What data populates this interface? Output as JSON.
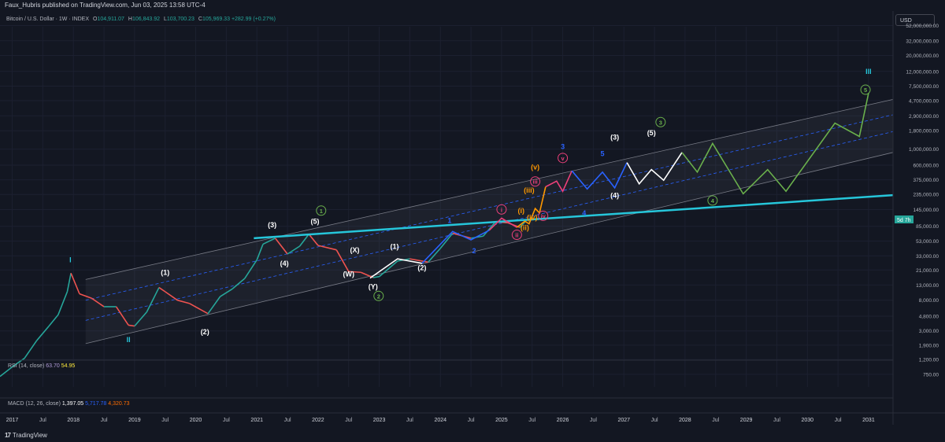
{
  "header": {
    "published": "Faux_Hubris published on TradingView.com, Jun 03, 2025 13:58 UTC-4",
    "symbol": "Bitcoin / U.S. Dollar · 1W · INDEX",
    "open_label": "O",
    "open": "104,911.07",
    "high_label": "H",
    "high": "106,843.92",
    "low_label": "L",
    "low": "103,700.23",
    "close_label": "C",
    "close": "105,969.33",
    "change": "+282.99 (+0.27%)"
  },
  "currency_button": "USD",
  "price_label": {
    "value": "5d 7h"
  },
  "indicators": {
    "rsi_label": "RSI (14, close)",
    "rsi_v1": "63.70",
    "rsi_v2": "54.95",
    "macd_label": "MACD (12, 26, close)",
    "macd_v1": "1,397.05",
    "macd_v2": "5,717.78",
    "macd_v3": "4,320.73"
  },
  "footer": {
    "logo_text": "TradingView"
  },
  "chart_data": {
    "type": "line",
    "y_scale": "log",
    "x_range": [
      2016.8,
      2031.4
    ],
    "y_range": [
      500,
      50000000
    ],
    "y_tick_labels": [
      "52,000,000.00",
      "32,000,000.00",
      "20,000,000.00",
      "12,000,000.00",
      "7,500,000.00",
      "4,700,000.00",
      "2,900,000.00",
      "1,800,000.00",
      "1,000,000.00",
      "600,000.00",
      "375,000.00",
      "235,000.00",
      "145,000.00",
      "85,000.00",
      "53,000.00",
      "33,000.00",
      "21,000.00",
      "13,000.00",
      "8,000.00",
      "4,800.00",
      "3,000.00",
      "1,900.00",
      "1,200.00",
      "750.00"
    ],
    "y_tick_values": [
      52000000,
      32000000,
      20000000,
      12000000,
      7500000,
      4700000,
      2900000,
      1800000,
      1000000,
      600000,
      375000,
      235000,
      145000,
      85000,
      53000,
      33000,
      21000,
      13000,
      8000,
      4800,
      3000,
      1900,
      1200,
      750
    ],
    "x_tick_labels": [
      "2017",
      "Jul",
      "2018",
      "Jul",
      "2019",
      "Jul",
      "2020",
      "Jul",
      "2021",
      "Jul",
      "2022",
      "Jul",
      "2023",
      "Jul",
      "2024",
      "Jul",
      "2025",
      "Jul",
      "2026",
      "Jul",
      "2027",
      "Jul",
      "2028",
      "Jul",
      "2029",
      "Jul",
      "2030",
      "Jul",
      "2031"
    ],
    "x_tick_values": [
      2017,
      2017.5,
      2018,
      2018.5,
      2019,
      2019.5,
      2020,
      2020.5,
      2021,
      2021.5,
      2022,
      2022.5,
      2023,
      2023.5,
      2024,
      2024.5,
      2025,
      2025.5,
      2026,
      2026.5,
      2027,
      2027.5,
      2028,
      2028.5,
      2029,
      2029.5,
      2030,
      2030.5,
      2031
    ],
    "price_series": {
      "name": "BTCUSD",
      "x": [
        2016.8,
        2017.0,
        2017.2,
        2017.4,
        2017.6,
        2017.75,
        2017.9,
        2017.96,
        2018.1,
        2018.3,
        2018.5,
        2018.7,
        2018.9,
        2019.0,
        2019.2,
        2019.4,
        2019.5,
        2019.7,
        2019.9,
        2020.2,
        2020.4,
        2020.6,
        2020.8,
        2021.0,
        2021.1,
        2021.3,
        2021.5,
        2021.7,
        2021.85,
        2022.0,
        2022.3,
        2022.5,
        2022.7,
        2022.9,
        2023.0,
        2023.3,
        2023.5,
        2023.8,
        2024.0,
        2024.2,
        2024.5,
        2024.7,
        2024.9,
        2025.1,
        2025.3,
        2025.42
      ],
      "y": [
        700,
        950,
        1250,
        2200,
        3500,
        5000,
        10500,
        19000,
        9800,
        8500,
        6500,
        6500,
        3600,
        3500,
        5500,
        12000,
        10500,
        8000,
        7200,
        5200,
        9000,
        11500,
        16000,
        29000,
        48000,
        58000,
        35000,
        45000,
        66000,
        46000,
        40000,
        20000,
        19500,
        16500,
        17000,
        28000,
        30000,
        27000,
        42000,
        68000,
        58000,
        62000,
        98000,
        95000,
        82000,
        106000
      ]
    },
    "channel": {
      "upper": [
        [
          2018.2,
          15500
        ],
        [
          2031.4,
          4900000
        ]
      ],
      "lower": [
        [
          2018.2,
          2000
        ],
        [
          2031.4,
          900000
        ]
      ],
      "mid1": [
        [
          2018.2,
          8000
        ],
        [
          2031.4,
          3000000
        ]
      ],
      "mid2": [
        [
          2018.2,
          4200
        ],
        [
          2031.4,
          1750000
        ]
      ]
    },
    "trendline": {
      "color": "#26c6da",
      "points": [
        [
          2020.95,
          58000
        ],
        [
          2031.4,
          230000
        ]
      ]
    },
    "projections": [
      {
        "color": "#ffffff",
        "points": [
          [
            2022.85,
            16200
          ],
          [
            2023.3,
            30000
          ],
          [
            2023.7,
            26000
          ]
        ]
      },
      {
        "color": "#2962ff",
        "points": [
          [
            2023.7,
            26000
          ],
          [
            2024.2,
            72000
          ],
          [
            2024.5,
            55000
          ],
          [
            2024.8,
            75000
          ]
        ]
      },
      {
        "color": "#ec407a",
        "points": [
          [
            2024.8,
            75000
          ],
          [
            2025.0,
            110000
          ],
          [
            2025.25,
            82000
          ]
        ]
      },
      {
        "color": "#ff9800",
        "points": [
          [
            2025.25,
            82000
          ],
          [
            2025.38,
            100000
          ],
          [
            2025.45,
            92000
          ],
          [
            2025.55,
            150000
          ],
          [
            2025.62,
            130000
          ],
          [
            2025.72,
            300000
          ]
        ]
      },
      {
        "color": "#ec407a",
        "points": [
          [
            2025.72,
            300000
          ],
          [
            2025.9,
            360000
          ],
          [
            2026.0,
            260000
          ],
          [
            2026.15,
            500000
          ]
        ]
      },
      {
        "color": "#2962ff",
        "points": [
          [
            2026.15,
            500000
          ],
          [
            2026.4,
            280000
          ],
          [
            2026.65,
            480000
          ],
          [
            2026.85,
            290000
          ],
          [
            2027.05,
            650000
          ]
        ]
      },
      {
        "color": "#ffffff",
        "points": [
          [
            2027.05,
            650000
          ],
          [
            2027.25,
            330000
          ],
          [
            2027.45,
            520000
          ],
          [
            2027.65,
            370000
          ],
          [
            2027.95,
            900000
          ]
        ]
      },
      {
        "color": "#6ab04c",
        "points": [
          [
            2027.95,
            900000
          ],
          [
            2028.2,
            480000
          ],
          [
            2028.45,
            1200000
          ],
          [
            2028.95,
            240000
          ],
          [
            2029.35,
            520000
          ],
          [
            2029.65,
            260000
          ],
          [
            2030.45,
            2300000
          ],
          [
            2030.85,
            1500000
          ],
          [
            2031.0,
            6000000
          ]
        ]
      }
    ],
    "wave_labels": [
      {
        "text": "I",
        "x": 2017.95,
        "y": 27000,
        "color": "#26c6da"
      },
      {
        "text": "II",
        "x": 2018.9,
        "y": 2100,
        "color": "#26c6da"
      },
      {
        "text": "(1)",
        "x": 2019.5,
        "y": 18000,
        "color": "#ffffff"
      },
      {
        "text": "(2)",
        "x": 2020.15,
        "y": 2700,
        "color": "#ffffff"
      },
      {
        "text": "(3)",
        "x": 2021.25,
        "y": 82000,
        "color": "#ffffff"
      },
      {
        "text": "(4)",
        "x": 2021.45,
        "y": 24000,
        "color": "#ffffff"
      },
      {
        "text": "(5)",
        "x": 2021.95,
        "y": 92000,
        "color": "#ffffff"
      },
      {
        "text": "1",
        "x": 2022.05,
        "y": 130000,
        "color": "#6ab04c",
        "circle": true
      },
      {
        "text": "(X)",
        "x": 2022.6,
        "y": 37000,
        "color": "#ffffff"
      },
      {
        "text": "(W)",
        "x": 2022.5,
        "y": 17000,
        "color": "#ffffff"
      },
      {
        "text": "(Y)",
        "x": 2022.9,
        "y": 11500,
        "color": "#ffffff"
      },
      {
        "text": "2",
        "x": 2022.99,
        "y": 8500,
        "color": "#6ab04c",
        "circle": true
      },
      {
        "text": "(1)",
        "x": 2023.25,
        "y": 41000,
        "color": "#ffffff"
      },
      {
        "text": "(2)",
        "x": 2023.7,
        "y": 21000,
        "color": "#ffffff"
      },
      {
        "text": "1",
        "x": 2024.15,
        "y": 95000,
        "color": "#2962ff"
      },
      {
        "text": "2",
        "x": 2024.55,
        "y": 36000,
        "color": "#2962ff"
      },
      {
        "text": "i",
        "x": 2025.0,
        "y": 135000,
        "color": "#ec407a",
        "circle": true
      },
      {
        "text": "ii",
        "x": 2025.25,
        "y": 60000,
        "color": "#ec407a",
        "circle": true
      },
      {
        "text": "(i)",
        "x": 2025.32,
        "y": 130000,
        "color": "#ff9800"
      },
      {
        "text": "(ii)",
        "x": 2025.38,
        "y": 75000,
        "color": "#ff9800"
      },
      {
        "text": "(iii)",
        "x": 2025.45,
        "y": 250000,
        "color": "#ff9800"
      },
      {
        "text": "(iv)",
        "x": 2025.5,
        "y": 105000,
        "color": "#ff9800"
      },
      {
        "text": "(v)",
        "x": 2025.55,
        "y": 520000,
        "color": "#ff9800"
      },
      {
        "text": "iii",
        "x": 2025.55,
        "y": 330000,
        "color": "#ec407a",
        "circle": true
      },
      {
        "text": "iv",
        "x": 2025.68,
        "y": 110000,
        "color": "#ec407a",
        "circle": true
      },
      {
        "text": "v",
        "x": 2026.0,
        "y": 700000,
        "color": "#ec407a",
        "circle": true
      },
      {
        "text": "3",
        "x": 2026.0,
        "y": 1000000,
        "color": "#2962ff"
      },
      {
        "text": "4",
        "x": 2026.35,
        "y": 120000,
        "color": "#2962ff"
      },
      {
        "text": "5",
        "x": 2026.65,
        "y": 800000,
        "color": "#2962ff"
      },
      {
        "text": "(3)",
        "x": 2026.85,
        "y": 1350000,
        "color": "#ffffff"
      },
      {
        "text": "(4)",
        "x": 2026.85,
        "y": 210000,
        "color": "#ffffff"
      },
      {
        "text": "(5)",
        "x": 2027.45,
        "y": 1550000,
        "color": "#ffffff"
      },
      {
        "text": "3",
        "x": 2027.6,
        "y": 2200000,
        "color": "#6ab04c",
        "circle": true
      },
      {
        "text": "4",
        "x": 2028.45,
        "y": 180000,
        "color": "#6ab04c",
        "circle": true
      },
      {
        "text": "5",
        "x": 2030.95,
        "y": 6200000,
        "color": "#6ab04c",
        "circle": true
      },
      {
        "text": "III",
        "x": 2031.0,
        "y": 11000000,
        "color": "#26c6da"
      }
    ]
  }
}
